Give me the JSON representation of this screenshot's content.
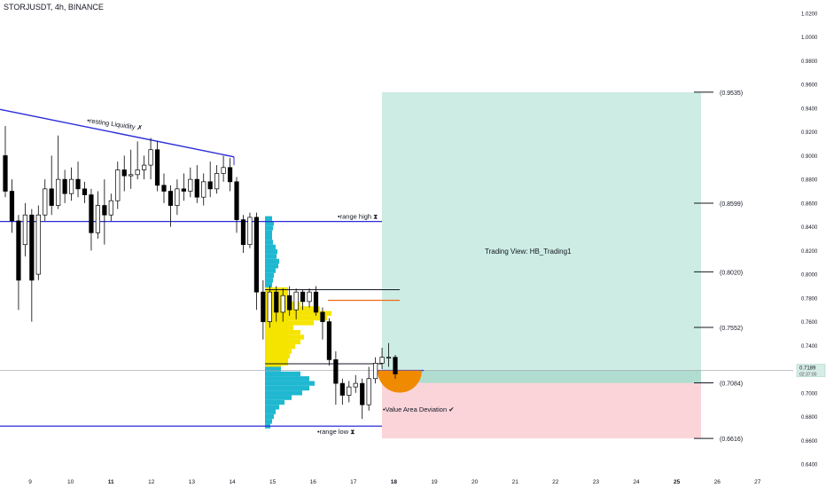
{
  "header": {
    "title": "STORJUSDT, 4h, BINANCE"
  },
  "chart_data": {
    "type": "candlestick",
    "symbol": "STORJUSDT",
    "timeframe": "4h",
    "exchange": "BINANCE",
    "ylim": [
      0.64,
      1.02
    ],
    "y_ticks": [
      "1.0200",
      "1.0000",
      "0.9800",
      "0.9600",
      "0.9400",
      "0.9200",
      "0.9000",
      "0.8800",
      "0.8600",
      "0.8400",
      "0.8200",
      "0.8000",
      "0.7800",
      "0.7600",
      "0.7400",
      "0.7200",
      "0.7000",
      "0.6800",
      "0.6600",
      "0.6400"
    ],
    "x_ticks": [
      {
        "label": "9",
        "bold": false
      },
      {
        "label": "10",
        "bold": false
      },
      {
        "label": "11",
        "bold": true
      },
      {
        "label": "12",
        "bold": false
      },
      {
        "label": "13",
        "bold": false
      },
      {
        "label": "14",
        "bold": false
      },
      {
        "label": "15",
        "bold": false
      },
      {
        "label": "16",
        "bold": false
      },
      {
        "label": "17",
        "bold": false
      },
      {
        "label": "18",
        "bold": true
      },
      {
        "label": "19",
        "bold": false
      },
      {
        "label": "20",
        "bold": false
      },
      {
        "label": "21",
        "bold": false
      },
      {
        "label": "22",
        "bold": false
      },
      {
        "label": "23",
        "bold": false
      },
      {
        "label": "24",
        "bold": false
      },
      {
        "label": "25",
        "bold": true
      },
      {
        "label": "26",
        "bold": false
      },
      {
        "label": "27",
        "bold": false
      }
    ],
    "candles": [
      [
        0.9,
        0.87,
        0.925,
        0.865
      ],
      [
        0.87,
        0.845,
        0.88,
        0.835
      ],
      [
        0.845,
        0.795,
        0.85,
        0.77
      ],
      [
        0.825,
        0.85,
        0.86,
        0.815
      ],
      [
        0.85,
        0.795,
        0.855,
        0.76
      ],
      [
        0.8,
        0.85,
        0.858,
        0.795
      ],
      [
        0.85,
        0.872,
        0.88,
        0.845
      ],
      [
        0.872,
        0.858,
        0.9,
        0.85
      ],
      [
        0.858,
        0.88,
        0.917,
        0.855
      ],
      [
        0.88,
        0.868,
        0.888,
        0.86
      ],
      [
        0.868,
        0.88,
        0.89,
        0.862
      ],
      [
        0.88,
        0.872,
        0.895,
        0.865
      ],
      [
        0.872,
        0.867,
        0.878,
        0.86
      ],
      [
        0.867,
        0.835,
        0.872,
        0.82
      ],
      [
        0.835,
        0.858,
        0.87,
        0.83
      ],
      [
        0.858,
        0.85,
        0.88,
        0.825
      ],
      [
        0.85,
        0.862,
        0.868,
        0.845
      ],
      [
        0.862,
        0.888,
        0.895,
        0.855
      ],
      [
        0.888,
        0.883,
        0.9,
        0.87
      ],
      [
        0.883,
        0.884,
        0.905,
        0.872
      ],
      [
        0.884,
        0.888,
        0.912,
        0.88
      ],
      [
        0.888,
        0.892,
        0.9,
        0.88
      ],
      [
        0.892,
        0.905,
        0.915,
        0.88
      ],
      [
        0.905,
        0.875,
        0.912,
        0.87
      ],
      [
        0.875,
        0.87,
        0.885,
        0.86
      ],
      [
        0.87,
        0.858,
        0.875,
        0.84
      ],
      [
        0.858,
        0.872,
        0.88,
        0.85
      ],
      [
        0.872,
        0.87,
        0.885,
        0.862
      ],
      [
        0.87,
        0.88,
        0.89,
        0.865
      ],
      [
        0.88,
        0.865,
        0.892,
        0.86
      ],
      [
        0.865,
        0.878,
        0.885,
        0.858
      ],
      [
        0.878,
        0.872,
        0.895,
        0.865
      ],
      [
        0.872,
        0.885,
        0.892,
        0.868
      ],
      [
        0.885,
        0.89,
        0.9,
        0.878
      ],
      [
        0.89,
        0.878,
        0.898,
        0.87
      ],
      [
        0.878,
        0.846,
        0.882,
        0.835
      ],
      [
        0.846,
        0.825,
        0.85,
        0.818
      ],
      [
        0.825,
        0.848,
        0.852,
        0.822
      ],
      [
        0.848,
        0.785,
        0.852,
        0.77
      ],
      [
        0.785,
        0.76,
        0.795,
        0.745
      ],
      [
        0.76,
        0.785,
        0.79,
        0.755
      ],
      [
        0.785,
        0.768,
        0.79,
        0.76
      ],
      [
        0.768,
        0.782,
        0.788,
        0.76
      ],
      [
        0.782,
        0.77,
        0.79,
        0.765
      ],
      [
        0.77,
        0.785,
        0.788,
        0.762
      ],
      [
        0.785,
        0.777,
        0.787,
        0.77
      ],
      [
        0.777,
        0.785,
        0.788,
        0.772
      ],
      [
        0.785,
        0.768,
        0.79,
        0.765
      ],
      [
        0.768,
        0.76,
        0.772,
        0.745
      ],
      [
        0.76,
        0.728,
        0.763,
        0.723
      ],
      [
        0.728,
        0.708,
        0.735,
        0.69
      ],
      [
        0.708,
        0.698,
        0.712,
        0.69
      ],
      [
        0.698,
        0.705,
        0.71,
        0.692
      ],
      [
        0.705,
        0.708,
        0.715,
        0.7
      ],
      [
        0.708,
        0.69,
        0.712,
        0.678
      ],
      [
        0.69,
        0.712,
        0.722,
        0.685
      ],
      [
        0.712,
        0.725,
        0.73,
        0.708
      ],
      [
        0.725,
        0.73,
        0.738,
        0.72
      ],
      [
        0.73,
        0.73,
        0.742,
        0.722
      ],
      [
        0.73,
        0.716,
        0.732,
        0.712
      ]
    ],
    "hlines": [
      {
        "name": "range high",
        "price": 0.8445
      },
      {
        "name": "range low",
        "price": 0.672
      }
    ],
    "trendline": {
      "name": "resting Liquidity",
      "from": {
        "x": "~Dec 8",
        "price": 0.939
      },
      "to": {
        "x": "Dec 14",
        "price": 0.899
      }
    },
    "price_label": {
      "price": "0.7189",
      "countdown": "02:37:00"
    },
    "position_levels": [
      "(0.9535)",
      "(0.8599)",
      "(0.8020)",
      "(0.7552)",
      "(0.7084)",
      "(0.6616)"
    ],
    "position_text": "Trading View: HB_Trading1",
    "annotations": {
      "resting_liquidity": "•resting Liquidity ✗",
      "range_high": "•range high ⧗",
      "range_low": "•range low ⧗",
      "value_area_deviation": "•Value Area Deviation ✔"
    },
    "colors": {
      "bull": "#ffffff",
      "bear": "#000000",
      "level_line": "#2b2bd9",
      "target_zone": "#cdece3",
      "stop_zone": "#fad4d9",
      "volume_profile_upper": "#f5e400",
      "volume_profile_lower": "#1fb8d0",
      "poc_line": "#ef6c1f",
      "deviation_marker": "#f08a00"
    }
  }
}
